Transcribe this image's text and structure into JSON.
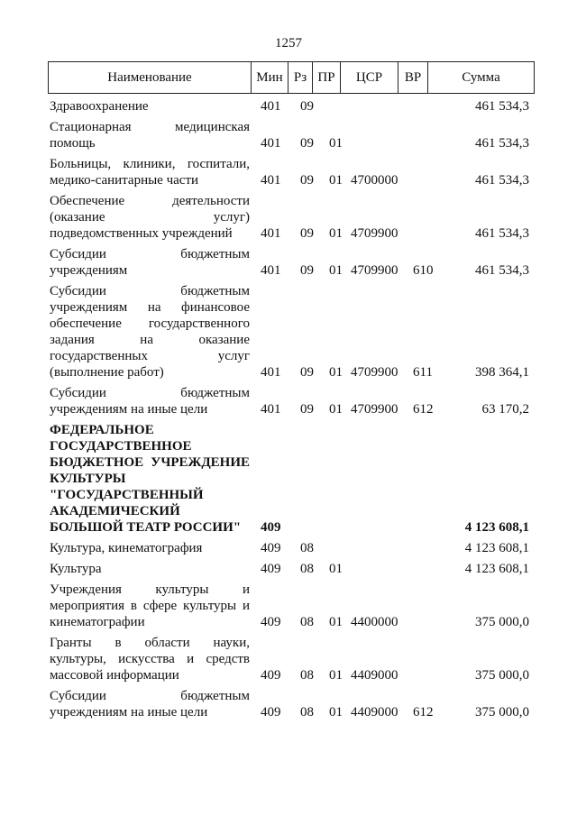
{
  "page_number": "1257",
  "header": [
    "Наименование",
    "Мин",
    "Рз",
    "ПР",
    "ЦСР",
    "ВР",
    "Сумма"
  ],
  "rows": [
    {
      "name": "Здравоохранение",
      "min": "401",
      "rz": "09",
      "pr": "",
      "csr": "",
      "vr": "",
      "sum": "461 534,3"
    },
    {
      "name": "Стационарная медицинская помощь",
      "min": "401",
      "rz": "09",
      "pr": "01",
      "csr": "",
      "vr": "",
      "sum": "461 534,3"
    },
    {
      "name": "Больницы, клиники, госпитали, медико-санитарные части",
      "min": "401",
      "rz": "09",
      "pr": "01",
      "csr": "4700000",
      "vr": "",
      "sum": "461 534,3"
    },
    {
      "name": "Обеспечение деятельности (оказание услуг) подведомственных учреждений",
      "min": "401",
      "rz": "09",
      "pr": "01",
      "csr": "4709900",
      "vr": "",
      "sum": "461 534,3"
    },
    {
      "name": "Субсидии бюджетным учреждениям",
      "min": "401",
      "rz": "09",
      "pr": "01",
      "csr": "4709900",
      "vr": "610",
      "sum": "461 534,3"
    },
    {
      "name": "Субсидии бюджетным учреждениям на финансовое обеспечение государственного задания на оказание государственных услуг (выполнение работ)",
      "min": "401",
      "rz": "09",
      "pr": "01",
      "csr": "4709900",
      "vr": "611",
      "sum": "398 364,1"
    },
    {
      "name": "Субсидии бюджетным учреждениям на иные цели",
      "min": "401",
      "rz": "09",
      "pr": "01",
      "csr": "4709900",
      "vr": "612",
      "sum": "63 170,2"
    },
    {
      "name": "ФЕДЕРАЛЬНОЕ ГОСУДАРСТВЕННОЕ БЮДЖЕТНОЕ УЧРЕЖДЕНИЕ КУЛЬТУРЫ \"ГОСУДАРСТВЕННЫЙ АКАДЕМИЧЕСКИЙ БОЛЬШОЙ ТЕАТР РОССИИ\"",
      "min": "409",
      "rz": "",
      "pr": "",
      "csr": "",
      "vr": "",
      "sum": "4 123 608,1",
      "bold": true
    },
    {
      "name": "Культура, кинематография",
      "min": "409",
      "rz": "08",
      "pr": "",
      "csr": "",
      "vr": "",
      "sum": "4 123 608,1"
    },
    {
      "name": "Культура",
      "min": "409",
      "rz": "08",
      "pr": "01",
      "csr": "",
      "vr": "",
      "sum": "4 123 608,1"
    },
    {
      "name": "Учреждения культуры и мероприятия в сфере культуры и кинематографии",
      "min": "409",
      "rz": "08",
      "pr": "01",
      "csr": "4400000",
      "vr": "",
      "sum": "375 000,0"
    },
    {
      "name": "Гранты в области науки, культуры, искусства и средств массовой информации",
      "min": "409",
      "rz": "08",
      "pr": "01",
      "csr": "4409000",
      "vr": "",
      "sum": "375 000,0"
    },
    {
      "name": "Субсидии бюджетным учреждениям на иные цели",
      "min": "409",
      "rz": "08",
      "pr": "01",
      "csr": "4409000",
      "vr": "612",
      "sum": "375 000,0"
    }
  ]
}
